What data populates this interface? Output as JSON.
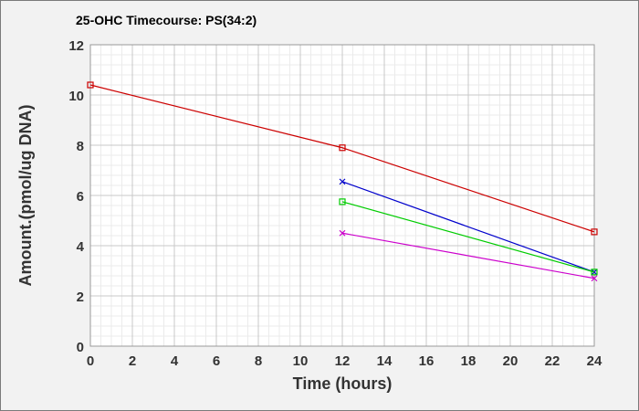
{
  "chart_data": {
    "type": "line",
    "title": "25-OHC Timecourse: PS(34:2)",
    "xlabel": "Time (hours)",
    "ylabel": "Amount.(pmol/ug DNA)",
    "xlim": [
      0,
      24
    ],
    "ylim": [
      0,
      12
    ],
    "x_ticks": [
      "0",
      "2",
      "4",
      "6",
      "8",
      "10",
      "12",
      "14",
      "16",
      "18",
      "20",
      "22",
      "24"
    ],
    "y_ticks": [
      "0",
      "2",
      "4",
      "6",
      "8",
      "10",
      "12"
    ],
    "grid": true,
    "series": [
      {
        "color": "#cc0000",
        "marker": "square",
        "x": [
          0,
          12,
          24
        ],
        "y": [
          10.4,
          7.9,
          4.55
        ]
      },
      {
        "color": "#0000cc",
        "marker": "x",
        "x": [
          12,
          24
        ],
        "y": [
          6.55,
          2.95
        ]
      },
      {
        "color": "#00cc00",
        "marker": "square",
        "x": [
          12,
          24
        ],
        "y": [
          5.75,
          2.95
        ]
      },
      {
        "color": "#cc00cc",
        "marker": "x",
        "x": [
          12,
          24
        ],
        "y": [
          4.5,
          2.7
        ]
      }
    ]
  }
}
